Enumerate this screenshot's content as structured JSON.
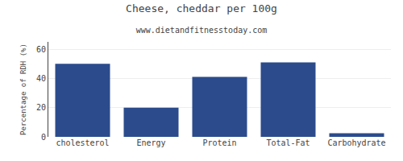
{
  "chart_data": {
    "type": "bar",
    "title": "Cheese, cheddar per 100g",
    "subtitle": "www.dietandfitnesstoday.com",
    "categories": [
      "cholesterol",
      "Energy",
      "Protein",
      "Total-Fat",
      "Carbohydrate"
    ],
    "values": [
      50,
      20,
      41,
      51,
      2.5
    ],
    "color": "#2b4b8c",
    "ylabel": "Percentage of RDH (%)",
    "ylim": [
      0,
      65
    ],
    "yticks": [
      0,
      20,
      40,
      60
    ],
    "grid": true
  }
}
